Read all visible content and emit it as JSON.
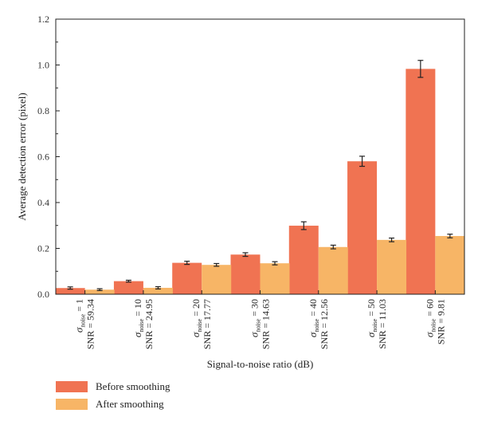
{
  "colors": {
    "before": "#f07352",
    "after": "#f7b566"
  },
  "legend": {
    "before_label": "Before smoothing",
    "after_label": "After smoothing"
  },
  "chart_data": {
    "type": "bar",
    "categories": [
      {
        "sigma": "σ",
        "sub": "noise",
        "eq": " = 1",
        "snr": "SNR = 59.34"
      },
      {
        "sigma": "σ",
        "sub": "noise",
        "eq": " = 10",
        "snr": "SNR = 24.95"
      },
      {
        "sigma": "σ",
        "sub": "noise",
        "eq": " = 20",
        "snr": "SNR = 17.77"
      },
      {
        "sigma": "σ",
        "sub": "noise",
        "eq": " = 30",
        "snr": "SNR = 14.63"
      },
      {
        "sigma": "σ",
        "sub": "noise",
        "eq": " = 40",
        "snr": "SNR = 12.56"
      },
      {
        "sigma": "σ",
        "sub": "noise",
        "eq": " = 50",
        "snr": "SNR = 11.03"
      },
      {
        "sigma": "σ",
        "sub": "noise",
        "eq": " = 60",
        "snr": "SNR = 9.81"
      }
    ],
    "series": [
      {
        "name": "Before smoothing",
        "values": [
          0.027,
          0.057,
          0.137,
          0.173,
          0.299,
          0.58,
          0.983
        ],
        "errors": [
          0.005,
          0.004,
          0.007,
          0.008,
          0.017,
          0.022,
          0.037
        ]
      },
      {
        "name": "After smoothing",
        "values": [
          0.02,
          0.028,
          0.128,
          0.135,
          0.206,
          0.237,
          0.254
        ],
        "errors": [
          0.004,
          0.005,
          0.006,
          0.007,
          0.008,
          0.008,
          0.008
        ]
      }
    ],
    "xlabel": "Signal-to-noise ratio (dB)",
    "ylabel": "Average detection error (pixel)",
    "ylim": [
      0,
      1.2
    ],
    "yticks": [
      "0.0",
      "0.2",
      "0.4",
      "0.6",
      "0.8",
      "1.0",
      "1.2"
    ],
    "legend_position": "bottom-left",
    "grid": false
  }
}
